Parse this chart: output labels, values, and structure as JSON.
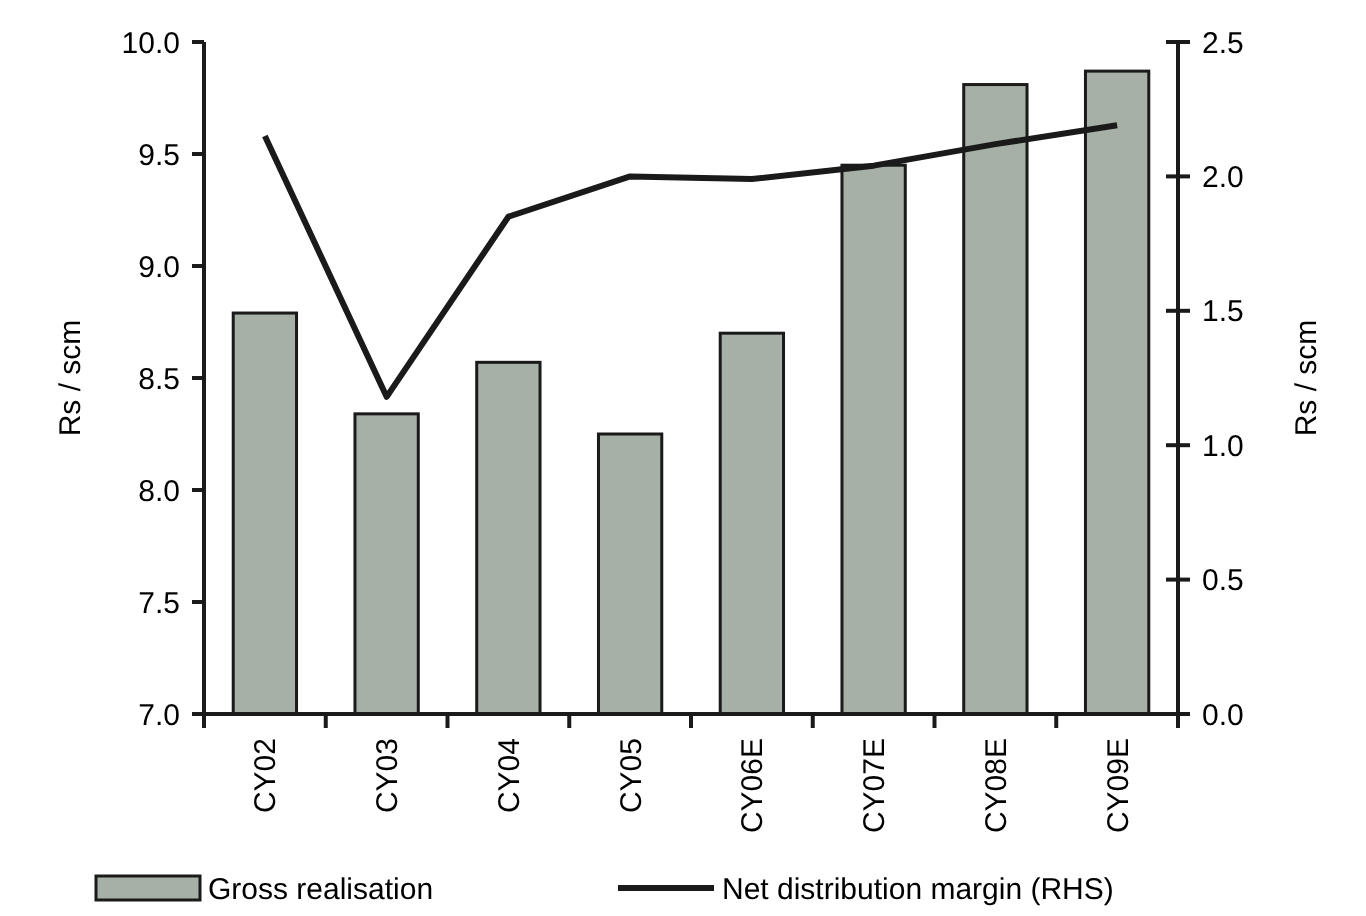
{
  "chart_data": {
    "type": "bar",
    "categories": [
      "CY02",
      "CY03",
      "CY04",
      "CY05",
      "CY06E",
      "CY07E",
      "CY08E",
      "CY09E"
    ],
    "series": [
      {
        "name": "Gross realisation",
        "color": "#a6b0a6",
        "values": [
          8.79,
          8.34,
          8.57,
          8.25,
          8.7,
          9.45,
          9.81,
          9.87
        ]
      },
      {
        "name": "Net distribution margin (RHS)",
        "type": "line",
        "axis": "y2",
        "color": "#1a1a1a",
        "values": [
          2.15,
          1.18,
          1.85,
          2.0,
          1.99,
          2.04,
          2.12,
          2.19
        ]
      }
    ],
    "ylabel": "Rs / scm",
    "y2label": "Rs / scm",
    "ylim": [
      7.0,
      10.0
    ],
    "yticks": [
      {
        "value": 7,
        "label": "7.0"
      },
      {
        "value": 7.5,
        "label": "7.5"
      },
      {
        "value": 8,
        "label": "8.0"
      },
      {
        "value": 8.5,
        "label": "8.5"
      },
      {
        "value": 9,
        "label": "9.0"
      },
      {
        "value": 9.5,
        "label": "9.5"
      },
      {
        "value": 10,
        "label": "10.0"
      }
    ],
    "y2lim": [
      0,
      2.5
    ],
    "y2ticks": [
      {
        "value": 0,
        "label": "0.0"
      },
      {
        "value": 0.5,
        "label": "0.5"
      },
      {
        "value": 1,
        "label": "1.0"
      },
      {
        "value": 1.5,
        "label": "1.5"
      },
      {
        "value": 2,
        "label": "2.0"
      },
      {
        "value": 2.5,
        "label": "2.5"
      }
    ],
    "grid": false,
    "legend": "bottom",
    "marker": "none",
    "line_style": "solid"
  }
}
